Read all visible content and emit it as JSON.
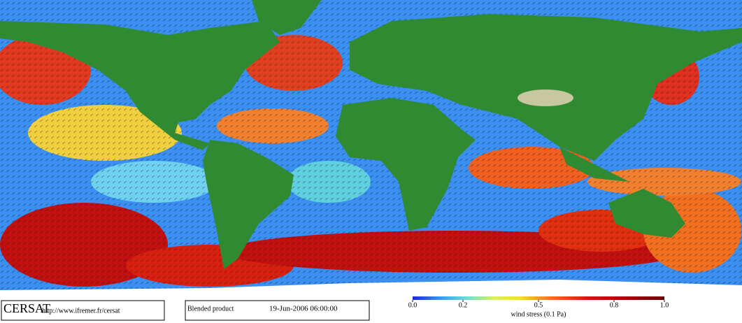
{
  "footer": {
    "logo": "CERSAT",
    "url": "http://www.ifremer.fr/cersat",
    "product": "Blended product",
    "date": "19-Jun-2006 06:00:00"
  },
  "colorbar": {
    "label": "wind stress (0.1 Pa)",
    "range": [
      0,
      1.0
    ],
    "ticks": [
      {
        "value": 0,
        "label": "0.0"
      },
      0.2,
      0.5,
      0.8,
      {
        "value": 1.0,
        "label": "1.0"
      }
    ]
  }
}
